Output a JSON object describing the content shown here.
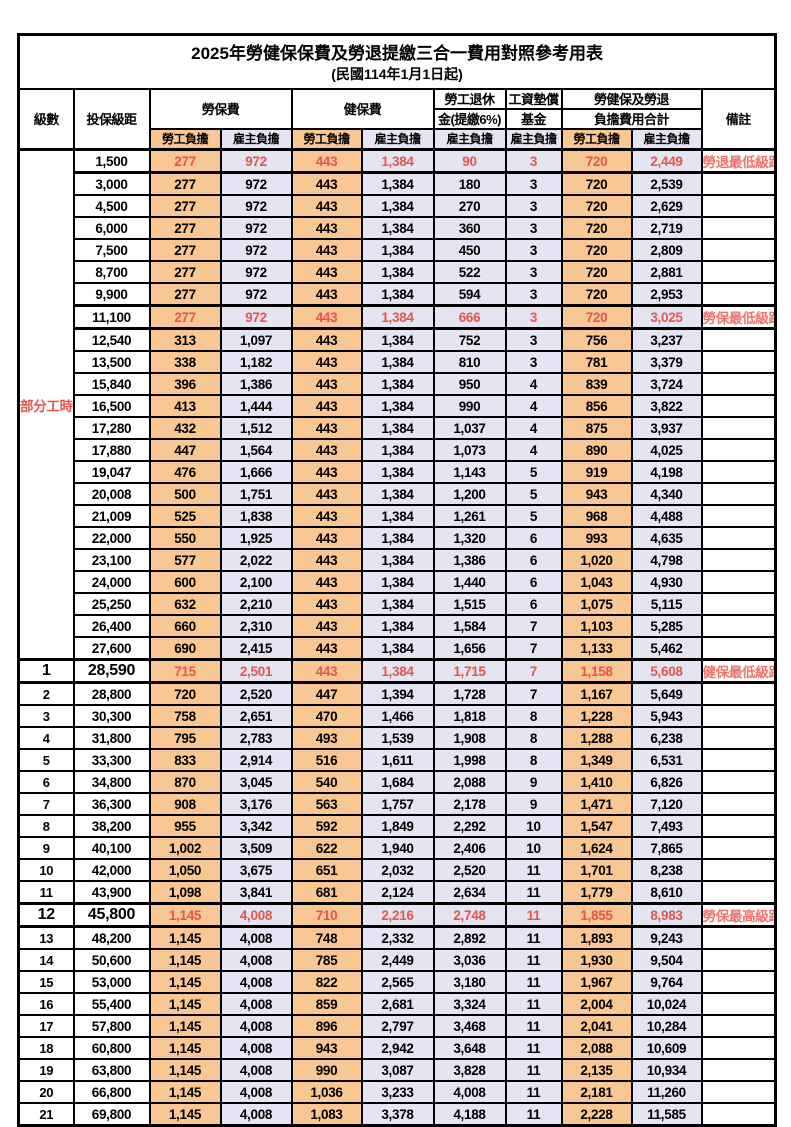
{
  "title": "2025年勞健保保費及勞退提繳三合一費用對照參考用表",
  "subtitle": "(民國114年1月1日起)",
  "colors": {
    "employee_col_bg": "#F9C794",
    "employer_col_bg": "#E4E4F2",
    "highlight_red": "#E8534B",
    "remark_red": "#F2736B",
    "grid": "#000000"
  },
  "header": {
    "level": "級數",
    "bracket": "投保級距",
    "labor_ins": "勞保費",
    "health_ins": "健保費",
    "pension_line1": "勞工退休",
    "pension_line2": "金(提繳6%)",
    "wage_fund_line1": "工資墊償",
    "wage_fund_line2": "基金",
    "total_line1": "勞健保及勞退",
    "total_line2": "負擔費用合計",
    "remark": "備註",
    "employee_share": "勞工負擔",
    "employer_share": "雇主負擔"
  },
  "group_label": "部分工時",
  "group_row_count": 23,
  "rows": [
    {
      "level": "",
      "bracket": "1,500",
      "values": [
        "277",
        "972",
        "443",
        "1,384",
        "90",
        "3",
        "720",
        "2,449"
      ],
      "remark": "勞退最低級距",
      "red": true
    },
    {
      "level": "",
      "bracket": "3,000",
      "values": [
        "277",
        "972",
        "443",
        "1,384",
        "180",
        "3",
        "720",
        "2,539"
      ]
    },
    {
      "level": "",
      "bracket": "4,500",
      "values": [
        "277",
        "972",
        "443",
        "1,384",
        "270",
        "3",
        "720",
        "2,629"
      ]
    },
    {
      "level": "",
      "bracket": "6,000",
      "values": [
        "277",
        "972",
        "443",
        "1,384",
        "360",
        "3",
        "720",
        "2,719"
      ]
    },
    {
      "level": "",
      "bracket": "7,500",
      "values": [
        "277",
        "972",
        "443",
        "1,384",
        "450",
        "3",
        "720",
        "2,809"
      ]
    },
    {
      "level": "",
      "bracket": "8,700",
      "values": [
        "277",
        "972",
        "443",
        "1,384",
        "522",
        "3",
        "720",
        "2,881"
      ]
    },
    {
      "level": "",
      "bracket": "9,900",
      "values": [
        "277",
        "972",
        "443",
        "1,384",
        "594",
        "3",
        "720",
        "2,953"
      ]
    },
    {
      "level": "",
      "bracket": "11,100",
      "values": [
        "277",
        "972",
        "443",
        "1,384",
        "666",
        "3",
        "720",
        "3,025"
      ],
      "remark": "勞保最低級距",
      "red": true
    },
    {
      "level": "",
      "bracket": "12,540",
      "values": [
        "313",
        "1,097",
        "443",
        "1,384",
        "752",
        "3",
        "756",
        "3,237"
      ]
    },
    {
      "level": "",
      "bracket": "13,500",
      "values": [
        "338",
        "1,182",
        "443",
        "1,384",
        "810",
        "3",
        "781",
        "3,379"
      ]
    },
    {
      "level": "",
      "bracket": "15,840",
      "values": [
        "396",
        "1,386",
        "443",
        "1,384",
        "950",
        "4",
        "839",
        "3,724"
      ]
    },
    {
      "level": "",
      "bracket": "16,500",
      "values": [
        "413",
        "1,444",
        "443",
        "1,384",
        "990",
        "4",
        "856",
        "3,822"
      ]
    },
    {
      "level": "",
      "bracket": "17,280",
      "values": [
        "432",
        "1,512",
        "443",
        "1,384",
        "1,037",
        "4",
        "875",
        "3,937"
      ]
    },
    {
      "level": "",
      "bracket": "17,880",
      "values": [
        "447",
        "1,564",
        "443",
        "1,384",
        "1,073",
        "4",
        "890",
        "4,025"
      ]
    },
    {
      "level": "",
      "bracket": "19,047",
      "values": [
        "476",
        "1,666",
        "443",
        "1,384",
        "1,143",
        "5",
        "919",
        "4,198"
      ]
    },
    {
      "level": "",
      "bracket": "20,008",
      "values": [
        "500",
        "1,751",
        "443",
        "1,384",
        "1,200",
        "5",
        "943",
        "4,340"
      ]
    },
    {
      "level": "",
      "bracket": "21,009",
      "values": [
        "525",
        "1,838",
        "443",
        "1,384",
        "1,261",
        "5",
        "968",
        "4,488"
      ]
    },
    {
      "level": "",
      "bracket": "22,000",
      "values": [
        "550",
        "1,925",
        "443",
        "1,384",
        "1,320",
        "6",
        "993",
        "4,635"
      ]
    },
    {
      "level": "",
      "bracket": "23,100",
      "values": [
        "577",
        "2,022",
        "443",
        "1,384",
        "1,386",
        "6",
        "1,020",
        "4,798"
      ]
    },
    {
      "level": "",
      "bracket": "24,000",
      "values": [
        "600",
        "2,100",
        "443",
        "1,384",
        "1,440",
        "6",
        "1,043",
        "4,930"
      ]
    },
    {
      "level": "",
      "bracket": "25,250",
      "values": [
        "632",
        "2,210",
        "443",
        "1,384",
        "1,515",
        "6",
        "1,075",
        "5,115"
      ]
    },
    {
      "level": "",
      "bracket": "26,400",
      "values": [
        "660",
        "2,310",
        "443",
        "1,384",
        "1,584",
        "7",
        "1,103",
        "5,285"
      ]
    },
    {
      "level": "",
      "bracket": "27,600",
      "values": [
        "690",
        "2,415",
        "443",
        "1,384",
        "1,656",
        "7",
        "1,133",
        "5,462"
      ]
    },
    {
      "level": "1",
      "bracket": "28,590",
      "values": [
        "715",
        "2,501",
        "443",
        "1,384",
        "1,715",
        "7",
        "1,158",
        "5,608"
      ],
      "remark": "健保最低級距",
      "red": true,
      "emph": true
    },
    {
      "level": "2",
      "bracket": "28,800",
      "values": [
        "720",
        "2,520",
        "447",
        "1,394",
        "1,728",
        "7",
        "1,167",
        "5,649"
      ]
    },
    {
      "level": "3",
      "bracket": "30,300",
      "values": [
        "758",
        "2,651",
        "470",
        "1,466",
        "1,818",
        "8",
        "1,228",
        "5,943"
      ]
    },
    {
      "level": "4",
      "bracket": "31,800",
      "values": [
        "795",
        "2,783",
        "493",
        "1,539",
        "1,908",
        "8",
        "1,288",
        "6,238"
      ]
    },
    {
      "level": "5",
      "bracket": "33,300",
      "values": [
        "833",
        "2,914",
        "516",
        "1,611",
        "1,998",
        "8",
        "1,349",
        "6,531"
      ]
    },
    {
      "level": "6",
      "bracket": "34,800",
      "values": [
        "870",
        "3,045",
        "540",
        "1,684",
        "2,088",
        "9",
        "1,410",
        "6,826"
      ]
    },
    {
      "level": "7",
      "bracket": "36,300",
      "values": [
        "908",
        "3,176",
        "563",
        "1,757",
        "2,178",
        "9",
        "1,471",
        "7,120"
      ]
    },
    {
      "level": "8",
      "bracket": "38,200",
      "values": [
        "955",
        "3,342",
        "592",
        "1,849",
        "2,292",
        "10",
        "1,547",
        "7,493"
      ]
    },
    {
      "level": "9",
      "bracket": "40,100",
      "values": [
        "1,002",
        "3,509",
        "622",
        "1,940",
        "2,406",
        "10",
        "1,624",
        "7,865"
      ]
    },
    {
      "level": "10",
      "bracket": "42,000",
      "values": [
        "1,050",
        "3,675",
        "651",
        "2,032",
        "2,520",
        "11",
        "1,701",
        "8,238"
      ]
    },
    {
      "level": "11",
      "bracket": "43,900",
      "values": [
        "1,098",
        "3,841",
        "681",
        "2,124",
        "2,634",
        "11",
        "1,779",
        "8,610"
      ]
    },
    {
      "level": "12",
      "bracket": "45,800",
      "values": [
        "1,145",
        "4,008",
        "710",
        "2,216",
        "2,748",
        "11",
        "1,855",
        "8,983"
      ],
      "remark": "勞保最高級距",
      "red": true,
      "emph": true
    },
    {
      "level": "13",
      "bracket": "48,200",
      "values": [
        "1,145",
        "4,008",
        "748",
        "2,332",
        "2,892",
        "11",
        "1,893",
        "9,243"
      ]
    },
    {
      "level": "14",
      "bracket": "50,600",
      "values": [
        "1,145",
        "4,008",
        "785",
        "2,449",
        "3,036",
        "11",
        "1,930",
        "9,504"
      ]
    },
    {
      "level": "15",
      "bracket": "53,000",
      "values": [
        "1,145",
        "4,008",
        "822",
        "2,565",
        "3,180",
        "11",
        "1,967",
        "9,764"
      ]
    },
    {
      "level": "16",
      "bracket": "55,400",
      "values": [
        "1,145",
        "4,008",
        "859",
        "2,681",
        "3,324",
        "11",
        "2,004",
        "10,024"
      ]
    },
    {
      "level": "17",
      "bracket": "57,800",
      "values": [
        "1,145",
        "4,008",
        "896",
        "2,797",
        "3,468",
        "11",
        "2,041",
        "10,284"
      ]
    },
    {
      "level": "18",
      "bracket": "60,800",
      "values": [
        "1,145",
        "4,008",
        "943",
        "2,942",
        "3,648",
        "11",
        "2,088",
        "10,609"
      ]
    },
    {
      "level": "19",
      "bracket": "63,800",
      "values": [
        "1,145",
        "4,008",
        "990",
        "3,087",
        "3,828",
        "11",
        "2,135",
        "10,934"
      ]
    },
    {
      "level": "20",
      "bracket": "66,800",
      "values": [
        "1,145",
        "4,008",
        "1,036",
        "3,233",
        "4,008",
        "11",
        "2,181",
        "11,260"
      ]
    },
    {
      "level": "21",
      "bracket": "69,800",
      "values": [
        "1,145",
        "4,008",
        "1,083",
        "3,378",
        "4,188",
        "11",
        "2,228",
        "11,585"
      ]
    }
  ],
  "value_column_keys": [
    "labor-employee",
    "labor-employer",
    "health-employee",
    "health-employer",
    "pension-employer",
    "wagefund-employer",
    "total-employee",
    "total-employer"
  ]
}
